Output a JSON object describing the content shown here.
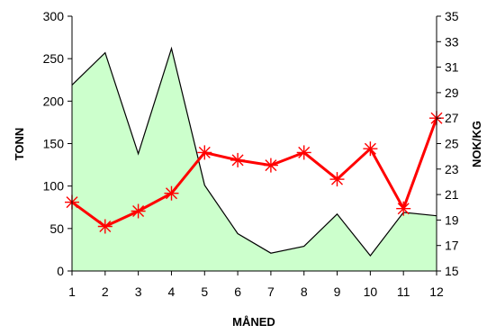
{
  "chart_data": {
    "type": "area",
    "xlabel": "MÅNED",
    "ylabel_left": "TONN",
    "ylabel_right": "NOK/KG",
    "x": [
      1,
      2,
      3,
      4,
      5,
      6,
      7,
      8,
      9,
      10,
      11,
      12
    ],
    "x_ticks": [
      "1",
      "2",
      "3",
      "4",
      "5",
      "6",
      "7",
      "8",
      "9",
      "10",
      "11",
      "12"
    ],
    "ylim_left": [
      0,
      300
    ],
    "yticks_left": [
      "0",
      "50",
      "100",
      "150",
      "200",
      "250",
      "300"
    ],
    "ylim_right": [
      15,
      35
    ],
    "yticks_right": [
      "15",
      "17",
      "19",
      "21",
      "23",
      "25",
      "27",
      "29",
      "31",
      "33",
      "35"
    ],
    "grid": false,
    "legend": "none",
    "series": [
      {
        "axis": "left",
        "style": "area",
        "color": "#ccffcc",
        "line_color": "#000000",
        "values": [
          219,
          257,
          138,
          262,
          101,
          44,
          21,
          29,
          67,
          18,
          69,
          65
        ]
      },
      {
        "axis": "right",
        "style": "line-markers",
        "color": "#ff0000",
        "marker": "asterisk",
        "values": [
          20.4,
          18.5,
          19.7,
          21.1,
          24.3,
          23.7,
          23.3,
          24.3,
          22.2,
          24.6,
          19.9,
          27.0
        ]
      }
    ]
  }
}
